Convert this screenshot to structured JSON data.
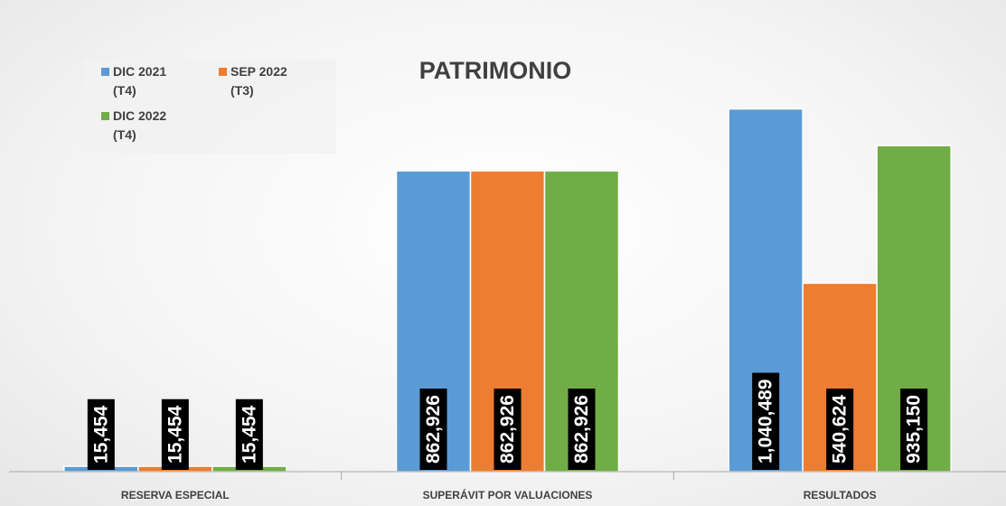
{
  "chart_data": {
    "type": "bar",
    "title": "PATRIMONIO",
    "categories": [
      "RESERVA ESPECIAL",
      "SUPERÁVIT POR VALUACIONES",
      "RESULTADOS"
    ],
    "series": [
      {
        "name": "DIC 2021 (T4)",
        "color": "#5b9bd5",
        "values": [
          15454,
          862926,
          1040489
        ],
        "value_labels": [
          "15,454",
          "862,926",
          "1,040,489"
        ]
      },
      {
        "name": "SEP 2022 (T3)",
        "color": "#ed7d31",
        "values": [
          15454,
          862926,
          540624
        ],
        "value_labels": [
          "15,454",
          "862,926",
          "540,624"
        ]
      },
      {
        "name": "DIC 2022 (T4)",
        "color": "#70ad47",
        "values": [
          15454,
          862926,
          935150
        ],
        "value_labels": [
          "15,454",
          "862,926",
          "935,150"
        ]
      }
    ],
    "ylim": [
      0,
      1200000
    ],
    "legend": "top-left"
  }
}
